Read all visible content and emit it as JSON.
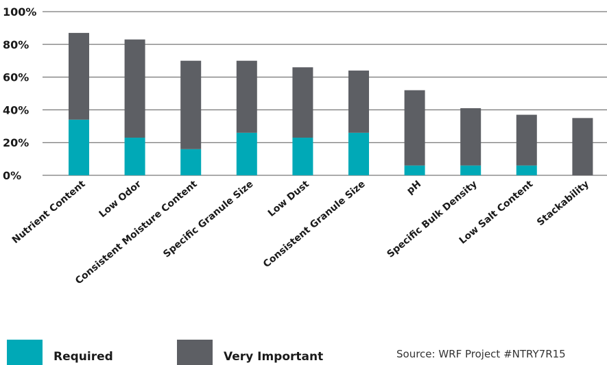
{
  "chart_data": {
    "type": "bar",
    "stacked": true,
    "categories": [
      "Nutrient Content",
      "Low Odor",
      "Consistent Moisture Content",
      "Specific Granule Size",
      "Low Dust",
      "Consistent Granule Size",
      "pH",
      "Specific Bulk Density",
      "Low Salt Content",
      "Stackability"
    ],
    "series": [
      {
        "name": "Required",
        "color": "#00a9b7",
        "values": [
          34,
          23,
          16,
          26,
          23,
          26,
          6,
          6,
          6,
          0
        ]
      },
      {
        "name": "Very Important",
        "color": "#5d5f64",
        "values": [
          53,
          60,
          54,
          44,
          43,
          38,
          46,
          35,
          31,
          35
        ]
      }
    ],
    "yticks": [
      "0%",
      "20%",
      "40%",
      "60%",
      "80%",
      "100%"
    ],
    "ylim": [
      0,
      100
    ],
    "grid": true,
    "legend_position": "bottom-left",
    "title": "",
    "xlabel": "",
    "ylabel": ""
  },
  "source": "Source: WRF Project #NTRY7R15"
}
